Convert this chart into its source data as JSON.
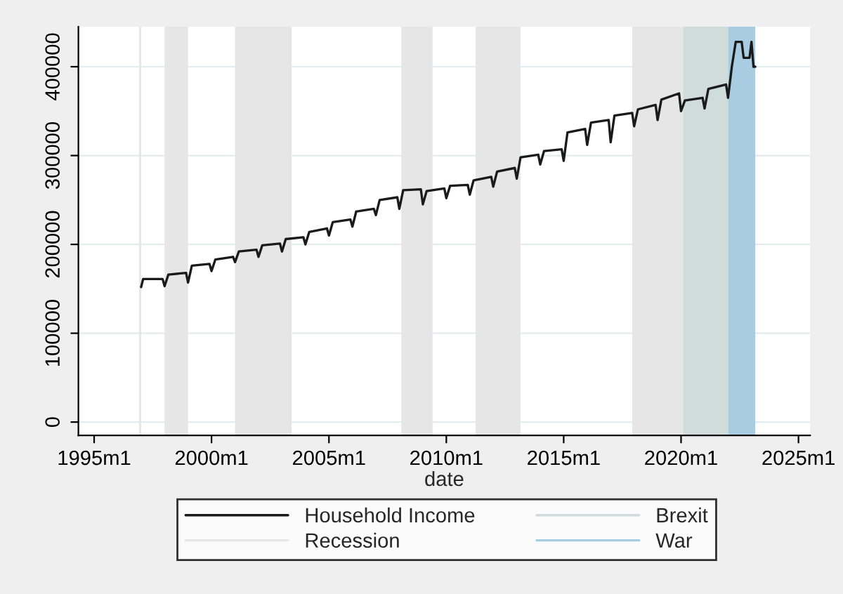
{
  "chart_data": {
    "type": "line",
    "xlabel": "date",
    "legend": "bottom",
    "grid": "y",
    "x": [
      "1997-01",
      "1997-02",
      "1997-12",
      "1998-01",
      "1998-03",
      "1998-12",
      "1999-01",
      "1999-03",
      "1999-12",
      "2000-01",
      "2000-03",
      "2000-12",
      "2001-01",
      "2001-03",
      "2001-12",
      "2002-01",
      "2002-03",
      "2002-12",
      "2003-01",
      "2003-03",
      "2003-12",
      "2004-01",
      "2004-03",
      "2004-12",
      "2005-01",
      "2005-03",
      "2005-12",
      "2006-01",
      "2006-03",
      "2006-12",
      "2007-01",
      "2007-03",
      "2007-12",
      "2008-01",
      "2008-03",
      "2008-12",
      "2009-01",
      "2009-03",
      "2009-12",
      "2010-01",
      "2010-03",
      "2010-12",
      "2011-01",
      "2011-03",
      "2011-12",
      "2012-01",
      "2012-03",
      "2012-12",
      "2013-01",
      "2013-03",
      "2013-12",
      "2014-01",
      "2014-03",
      "2014-12",
      "2015-01",
      "2015-03",
      "2015-12",
      "2016-01",
      "2016-03",
      "2016-12",
      "2017-01",
      "2017-03",
      "2017-12",
      "2018-01",
      "2018-03",
      "2018-12",
      "2019-01",
      "2019-03",
      "2019-12",
      "2020-01",
      "2020-03",
      "2020-12",
      "2021-01",
      "2021-03",
      "2021-12",
      "2022-01",
      "2022-03",
      "2022-05",
      "2022-08",
      "2022-09",
      "2022-12",
      "2023-01",
      "2023-02",
      "2023-03"
    ],
    "series": [
      {
        "name": "Household Income",
        "color": "#1a1a1a",
        "values": [
          152000,
          161000,
          161000,
          153000,
          166000,
          168000,
          157000,
          176000,
          178000,
          170000,
          183000,
          186000,
          180000,
          192000,
          194000,
          186000,
          199000,
          201000,
          192000,
          206000,
          208000,
          200000,
          214000,
          218000,
          210000,
          225000,
          228000,
          220000,
          237000,
          240000,
          233000,
          250000,
          253000,
          240000,
          261000,
          262000,
          245000,
          260000,
          263000,
          252000,
          266000,
          267000,
          256000,
          272000,
          276000,
          265000,
          282000,
          286000,
          274000,
          298000,
          301000,
          290000,
          305000,
          307000,
          294000,
          326000,
          330000,
          312000,
          337000,
          340000,
          315000,
          345000,
          348000,
          333000,
          352000,
          357000,
          340000,
          363000,
          370000,
          350000,
          362000,
          365000,
          353000,
          375000,
          380000,
          365000,
          400000,
          428000,
          428000,
          410000,
          410000,
          428000,
          400000,
          400000
        ]
      }
    ],
    "bands": [
      {
        "axis": "x",
        "from": "1996-12",
        "to": "1997-01",
        "label": "Recession",
        "color": "#e6e6e6"
      },
      {
        "axis": "x",
        "from": "1998-01",
        "to": "1999-01",
        "color": "#e6e6e6"
      },
      {
        "axis": "x",
        "from": "2001-01",
        "to": "2003-06",
        "color": "#e6e6e6"
      },
      {
        "axis": "x",
        "from": "2008-02",
        "to": "2009-06",
        "color": "#e6e6e6"
      },
      {
        "axis": "x",
        "from": "2011-04",
        "to": "2013-03",
        "color": "#e6e6e6"
      },
      {
        "axis": "x",
        "from": "2017-12",
        "to": "2020-02",
        "color": "#e6e6e6"
      },
      {
        "axis": "x",
        "from": "2020-02",
        "to": "2022-01",
        "label": "Brexit",
        "color": "#cfdcda"
      },
      {
        "axis": "x",
        "from": "2022-01",
        "to": "2023-03",
        "label": "War",
        "color": "#a8cde3"
      }
    ],
    "xlim": [
      "1994-05",
      "2025-07"
    ],
    "xticks": [
      {
        "value": "1995-01",
        "label": "1995m1"
      },
      {
        "value": "2000-01",
        "label": "2000m1"
      },
      {
        "value": "2005-01",
        "label": "2005m1"
      },
      {
        "value": "2010-01",
        "label": "2010m1"
      },
      {
        "value": "2015-01",
        "label": "2015m1"
      },
      {
        "value": "2020-01",
        "label": "2020m1"
      },
      {
        "value": "2025-01",
        "label": "2025m1"
      }
    ],
    "ylim": [
      -15000,
      445000
    ],
    "yticks": [
      0,
      100000,
      200000,
      300000,
      400000
    ]
  }
}
